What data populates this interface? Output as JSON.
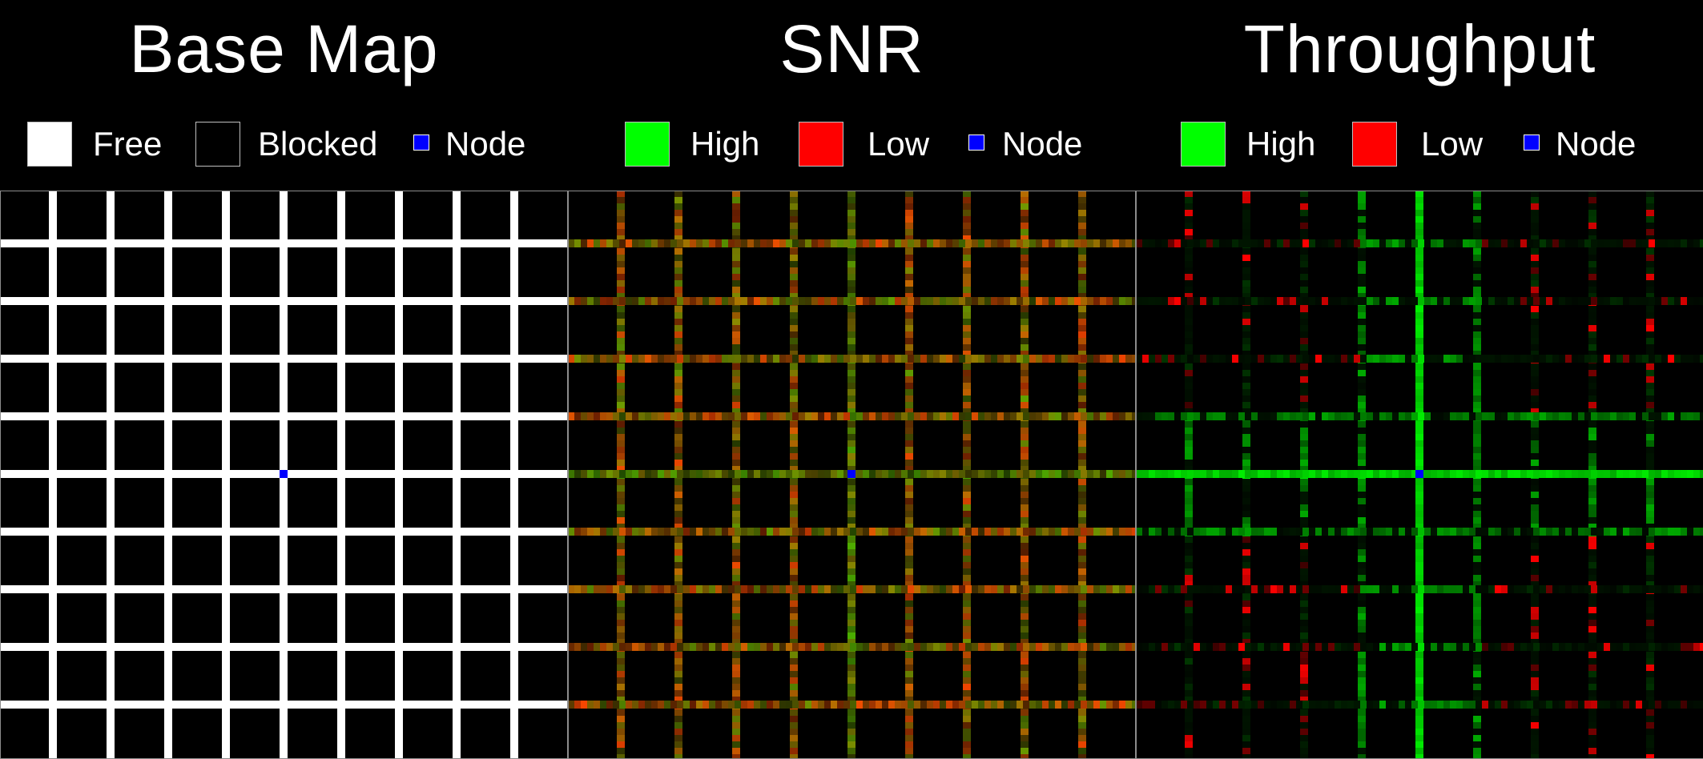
{
  "panels": [
    {
      "title": "Base Map",
      "legend": [
        {
          "label": "Free",
          "color": "#ffffff"
        },
        {
          "label": "Blocked",
          "color": "#000000"
        },
        {
          "label": "Node",
          "color": "#0000ff"
        }
      ]
    },
    {
      "title": "SNR",
      "legend": [
        {
          "label": "High",
          "color": "#00ff00"
        },
        {
          "label": "Low",
          "color": "#ff0000"
        },
        {
          "label": "Node",
          "color": "#0000ff"
        }
      ]
    },
    {
      "title": "Throughput",
      "legend": [
        {
          "label": "High",
          "color": "#00ff00"
        },
        {
          "label": "Low",
          "color": "#ff0000"
        },
        {
          "label": "Node",
          "color": "#0000ff"
        }
      ]
    }
  ],
  "colors": {
    "background": "#000000",
    "free": "#ffffff",
    "blocked": "#000000",
    "node": "#0000ff",
    "high": "#00ff00",
    "low": "#ff0000"
  }
}
